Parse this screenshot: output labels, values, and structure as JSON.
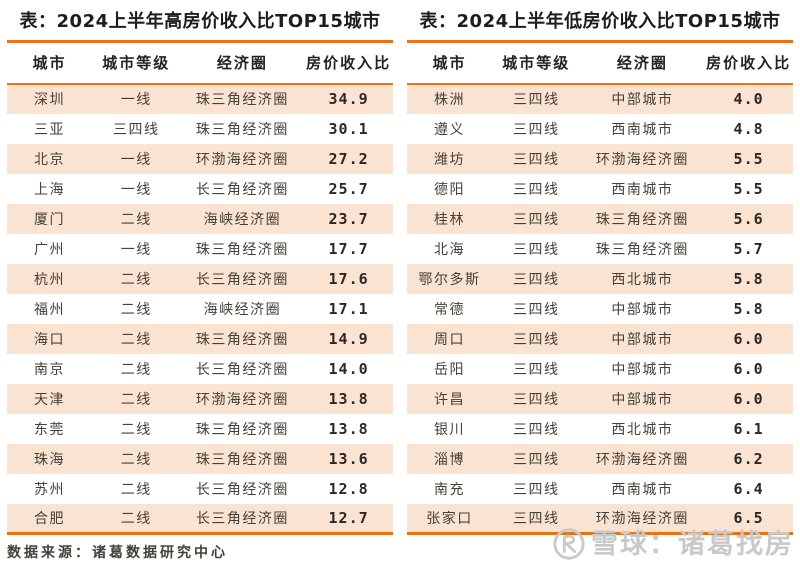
{
  "chart_data": [
    {
      "type": "table",
      "title": "表：2024上半年高房价收入比TOP15城市",
      "columns": [
        "城市",
        "城市等级",
        "经济圈",
        "房价收入比"
      ],
      "rows": [
        [
          "深圳",
          "一线",
          "珠三角经济圈",
          "34.9"
        ],
        [
          "三亚",
          "三四线",
          "珠三角经济圈",
          "30.1"
        ],
        [
          "北京",
          "一线",
          "环渤海经济圈",
          "27.2"
        ],
        [
          "上海",
          "一线",
          "长三角经济圈",
          "25.7"
        ],
        [
          "厦门",
          "二线",
          "海峡经济圈",
          "23.7"
        ],
        [
          "广州",
          "一线",
          "珠三角经济圈",
          "17.7"
        ],
        [
          "杭州",
          "二线",
          "长三角经济圈",
          "17.6"
        ],
        [
          "福州",
          "二线",
          "海峡经济圈",
          "17.1"
        ],
        [
          "海口",
          "二线",
          "珠三角经济圈",
          "14.9"
        ],
        [
          "南京",
          "二线",
          "长三角经济圈",
          "14.0"
        ],
        [
          "天津",
          "二线",
          "环渤海经济圈",
          "13.8"
        ],
        [
          "东莞",
          "二线",
          "珠三角经济圈",
          "13.8"
        ],
        [
          "珠海",
          "二线",
          "珠三角经济圈",
          "13.6"
        ],
        [
          "苏州",
          "二线",
          "长三角经济圈",
          "12.8"
        ],
        [
          "合肥",
          "二线",
          "长三角经济圈",
          "12.7"
        ]
      ]
    },
    {
      "type": "table",
      "title": "表：2024上半年低房价收入比TOP15城市",
      "columns": [
        "城市",
        "城市等级",
        "经济圈",
        "房价收入比"
      ],
      "rows": [
        [
          "株洲",
          "三四线",
          "中部城市",
          "4.0"
        ],
        [
          "遵义",
          "三四线",
          "西南城市",
          "4.8"
        ],
        [
          "潍坊",
          "三四线",
          "环渤海经济圈",
          "5.5"
        ],
        [
          "德阳",
          "三四线",
          "西南城市",
          "5.5"
        ],
        [
          "桂林",
          "三四线",
          "珠三角经济圈",
          "5.6"
        ],
        [
          "北海",
          "三四线",
          "珠三角经济圈",
          "5.7"
        ],
        [
          "鄂尔多斯",
          "三四线",
          "西北城市",
          "5.8"
        ],
        [
          "常德",
          "三四线",
          "中部城市",
          "5.8"
        ],
        [
          "周口",
          "三四线",
          "中部城市",
          "6.0"
        ],
        [
          "岳阳",
          "三四线",
          "中部城市",
          "6.0"
        ],
        [
          "许昌",
          "三四线",
          "中部城市",
          "6.0"
        ],
        [
          "银川",
          "三四线",
          "西北城市",
          "6.1"
        ],
        [
          "淄博",
          "三四线",
          "环渤海经济圈",
          "6.2"
        ],
        [
          "南充",
          "三四线",
          "西南城市",
          "6.4"
        ],
        [
          "张家口",
          "三四线",
          "环渤海经济圈",
          "6.5"
        ]
      ]
    }
  ],
  "footer": {
    "source_label": "数据来源：诸葛数据研究中心"
  },
  "watermark": {
    "icon": "xueqiu-logo-icon",
    "text": "雪球：诸葛找房"
  },
  "colors": {
    "accent": "#EC7113",
    "row_highlight": "#FAE3D1",
    "text": "#454039",
    "watermark_gray": "#C9C9C9"
  }
}
